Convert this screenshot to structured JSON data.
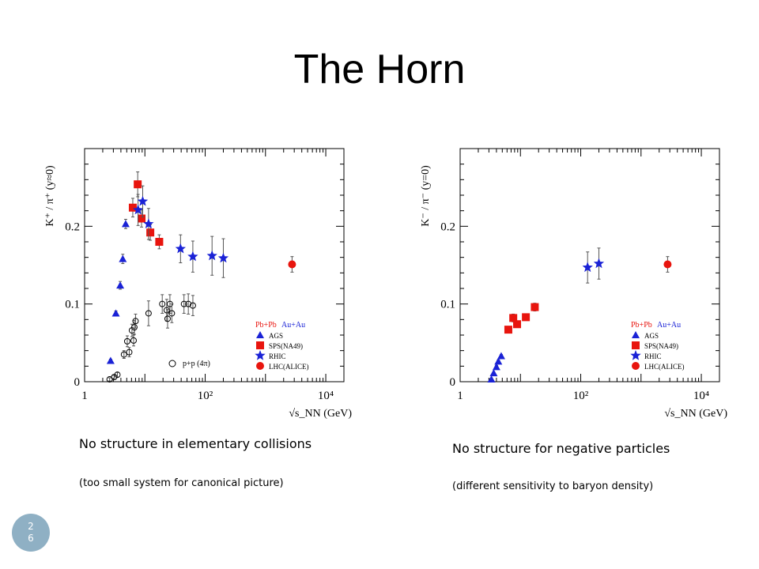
{
  "slide": {
    "title": "The Horn",
    "page_number_top": "2",
    "page_number_bottom": "6"
  },
  "captions": {
    "left_main": "No structure in elementary collisions",
    "left_sub": "(too small system for canonical picture)",
    "right_main": "No structure for negative particles",
    "right_sub": "(different sensitivity to baryon density)"
  },
  "colors": {
    "red": "#e8150e",
    "blue": "#1a22d6",
    "black": "#000000",
    "gray_errors": "#555555"
  },
  "chart_data": [
    {
      "type": "scatter",
      "title": "",
      "ylabel": "K⁺ / π⁺ (y≈0)",
      "xlabel": "√s_NN (GeV)",
      "xscale": "log",
      "xlim": [
        1,
        20000
      ],
      "ylim": [
        0,
        0.3
      ],
      "yticks": [
        "0",
        "0.1",
        "0.2"
      ],
      "xticks": [
        "1",
        "10²",
        "10⁴"
      ],
      "legend": {
        "placement": "bottom-right",
        "header": [
          "Pb+Pb",
          "Au+Au"
        ],
        "entries": [
          "AGS",
          "SPS(NA49)",
          "RHIC",
          "LHC(ALICE)"
        ]
      },
      "pp_label": "p+p (4π)",
      "series": [
        {
          "name": "AGS",
          "marker": "triangle",
          "color": "blue",
          "x": [
            2.7,
            3.3,
            3.9,
            4.3,
            4.8
          ],
          "y": [
            0.027,
            0.088,
            0.124,
            0.158,
            0.203
          ],
          "err": [
            0.002,
            0.003,
            0.005,
            0.006,
            0.006
          ]
        },
        {
          "name": "SPS(NA49)",
          "marker": "square",
          "color": "red",
          "x": [
            6.3,
            7.6,
            8.8,
            12.3,
            17.3
          ],
          "y": [
            0.224,
            0.254,
            0.21,
            0.192,
            0.18
          ],
          "err": [
            0.012,
            0.016,
            0.011,
            0.01,
            0.009
          ]
        },
        {
          "name": "RHIC",
          "marker": "star",
          "color": "blue",
          "x": [
            7.7,
            9.2,
            11.5,
            39,
            62.4,
            130,
            200
          ],
          "y": [
            0.221,
            0.232,
            0.203,
            0.171,
            0.161,
            0.162,
            0.159
          ],
          "err": [
            0.02,
            0.02,
            0.02,
            0.018,
            0.02,
            0.025,
            0.025
          ]
        },
        {
          "name": "LHC(ALICE)",
          "marker": "circle",
          "color": "red",
          "x": [
            2760
          ],
          "y": [
            0.151
          ],
          "err": [
            0.01
          ]
        },
        {
          "name": "p+p (4π)",
          "marker": "open-circle",
          "color": "black",
          "x": [
            2.6,
            3.1,
            3.5,
            4.5,
            5.1,
            5.5,
            6.1,
            6.5,
            6.7,
            7.0,
            11.5,
            19.4,
            23.0,
            23.8,
            26.0,
            28.0,
            44.5,
            52.5,
            62.5
          ],
          "y": [
            0.003,
            0.006,
            0.009,
            0.035,
            0.052,
            0.038,
            0.066,
            0.053,
            0.07,
            0.078,
            0.088,
            0.1,
            0.092,
            0.081,
            0.1,
            0.088,
            0.1,
            0.1,
            0.098
          ],
          "err": [
            0.002,
            0.002,
            0.003,
            0.005,
            0.007,
            0.006,
            0.008,
            0.007,
            0.009,
            0.009,
            0.016,
            0.012,
            0.014,
            0.012,
            0.012,
            0.012,
            0.012,
            0.013,
            0.013
          ]
        }
      ]
    },
    {
      "type": "scatter",
      "title": "",
      "ylabel": "K⁻ / π⁻ (y=0)",
      "xlabel": "√s_NN (GeV)",
      "xscale": "log",
      "xlim": [
        1,
        20000
      ],
      "ylim": [
        0,
        0.3
      ],
      "yticks": [
        "0",
        "0.1",
        "0.2"
      ],
      "xticks": [
        "1",
        "10²",
        "10⁴"
      ],
      "legend": {
        "placement": "bottom-right",
        "header": [
          "Pb+Pb",
          "Au+Au"
        ],
        "entries": [
          "AGS",
          "SPS(NA49)",
          "RHIC",
          "LHC(ALICE)"
        ]
      },
      "series": [
        {
          "name": "AGS",
          "marker": "triangle",
          "color": "blue",
          "x": [
            3.3,
            3.6,
            4.0,
            4.3,
            4.8
          ],
          "y": [
            0.003,
            0.011,
            0.019,
            0.026,
            0.033
          ],
          "err": [
            0.001,
            0.001,
            0.002,
            0.002,
            0.002
          ]
        },
        {
          "name": "SPS(NA49)",
          "marker": "square",
          "color": "red",
          "x": [
            6.3,
            7.6,
            8.8,
            12.3,
            17.3
          ],
          "y": [
            0.067,
            0.082,
            0.074,
            0.083,
            0.096
          ],
          "err": [
            0.004,
            0.005,
            0.004,
            0.004,
            0.005
          ]
        },
        {
          "name": "RHIC",
          "marker": "star",
          "color": "blue",
          "x": [
            130,
            200
          ],
          "y": [
            0.147,
            0.152
          ],
          "err": [
            0.02,
            0.02
          ]
        },
        {
          "name": "LHC(ALICE)",
          "marker": "circle",
          "color": "red",
          "x": [
            2760
          ],
          "y": [
            0.151
          ],
          "err": [
            0.01
          ]
        }
      ]
    }
  ]
}
